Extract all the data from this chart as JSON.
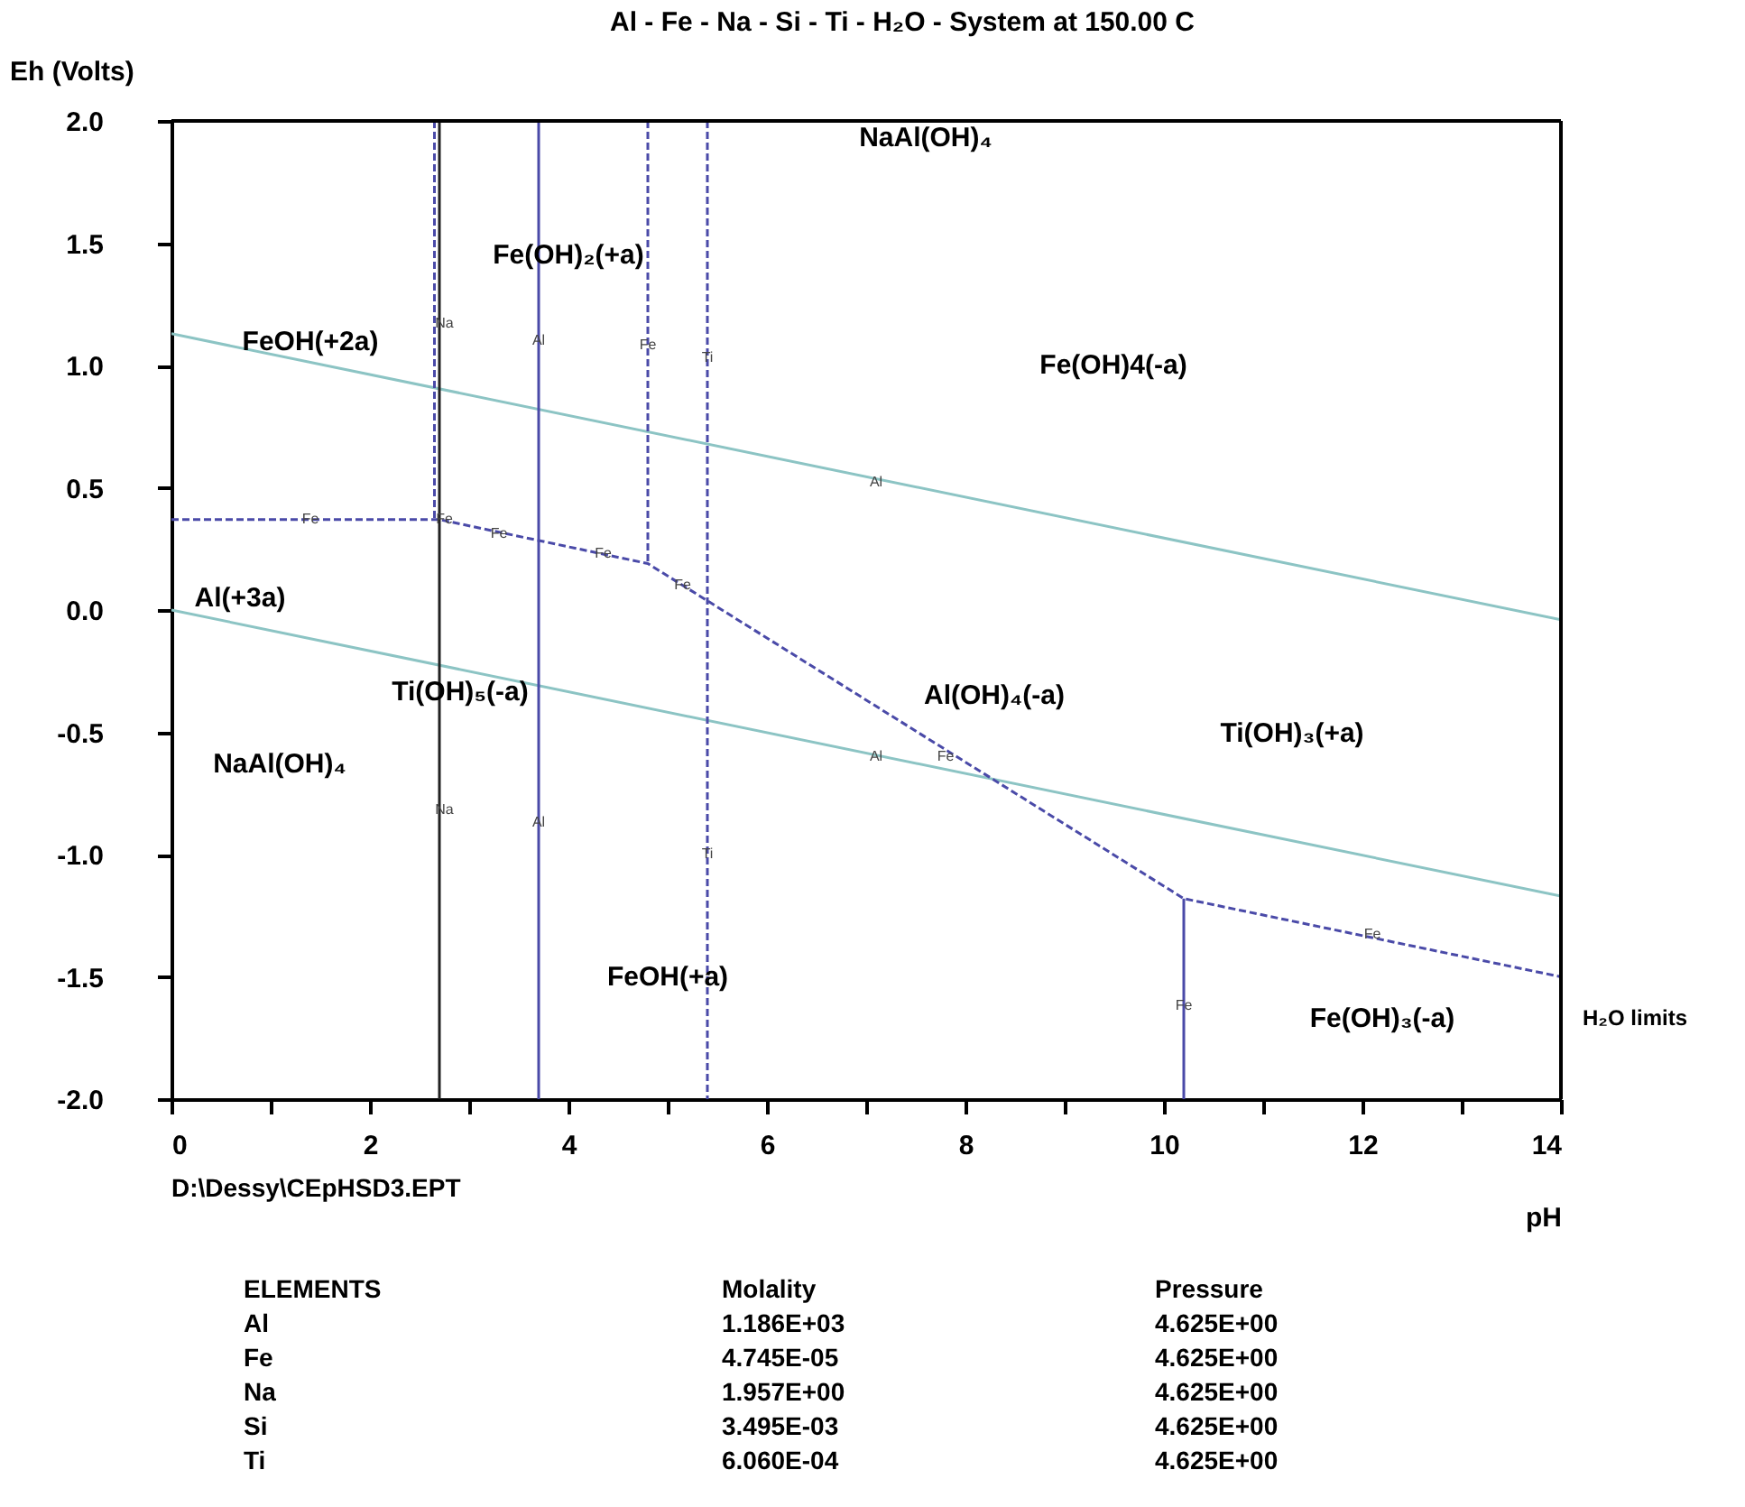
{
  "chart_data": {
    "type": "line",
    "title": "Al - Fe - Na - Si - Ti - H₂O - System at 150.00 C",
    "xlabel": "pH",
    "ylabel": "Eh (Volts)",
    "xlim": [
      0,
      14
    ],
    "ylim": [
      -2,
      2
    ],
    "xticks": [
      0,
      {
        "value": 1,
        "label": null
      },
      2,
      {
        "value": 3,
        "label": null
      },
      4,
      {
        "value": 5,
        "label": null
      },
      6,
      {
        "value": 7,
        "label": null
      },
      8,
      {
        "value": 9,
        "label": null
      },
      10,
      {
        "value": 11,
        "label": null
      },
      12,
      {
        "value": 13,
        "label": null
      },
      14
    ],
    "yticks": [
      {
        "value": -2,
        "label": "-2.0"
      },
      {
        "value": -1.5,
        "label": "-1.5"
      },
      {
        "value": -1,
        "label": "-1.0"
      },
      {
        "value": -0.5,
        "label": "-0.5"
      },
      {
        "value": 0,
        "label": "0.0"
      },
      {
        "value": 0.5,
        "label": "0.5"
      },
      {
        "value": 1,
        "label": "1.0"
      },
      {
        "value": 1.5,
        "label": "1.5"
      },
      {
        "value": 2,
        "label": "2.0"
      }
    ],
    "grid": false,
    "marker": "none",
    "series": [
      {
        "color": "#8cc4c4",
        "line_style": "solid",
        "x": [
          0,
          14
        ],
        "values": [
          1.13,
          -0.04
        ]
      },
      {
        "color": "#8cc4c4",
        "line_style": "solid",
        "x": [
          0,
          14
        ],
        "values": [
          0.0,
          -1.17
        ]
      },
      {
        "color": "#4a4aa8",
        "line_style": "dashed",
        "x": [
          0,
          2.7,
          4.8,
          10.2,
          14
        ],
        "values": [
          0.37,
          0.37,
          0.19,
          -1.18,
          -1.5
        ]
      },
      {
        "color": "#4a4aa8",
        "line_style": "dashed",
        "x": [
          2.65,
          2.65
        ],
        "values": [
          2.0,
          0.37
        ]
      },
      {
        "color": "#222222",
        "line_style": "solid",
        "x": [
          2.7,
          2.7
        ],
        "values": [
          2.0,
          -2.0
        ]
      },
      {
        "color": "#4a4aa8",
        "line_style": "solid",
        "x": [
          3.7,
          3.7
        ],
        "values": [
          2.0,
          -2.0
        ]
      },
      {
        "color": "#4a4aa8",
        "line_style": "dashed",
        "x": [
          4.8,
          4.8
        ],
        "values": [
          2.0,
          0.19
        ]
      },
      {
        "color": "#4a4aa8",
        "line_style": "dashed",
        "x": [
          5.4,
          5.4
        ],
        "values": [
          2.0,
          -2.0
        ]
      },
      {
        "color": "#4a4aa8",
        "line_style": "solid",
        "x": [
          10.2,
          10.2
        ],
        "values": [
          -1.18,
          -2.0
        ]
      }
    ],
    "annotations": [
      "NaAl(OH)₄",
      "Fe(OH)₂(+a)",
      "FeOH(+2a)",
      "Fe(OH)4(-a)",
      "Al(+3a)",
      "Ti(OH)₅(-a)",
      "Al(OH)₄(-a)",
      "Ti(OH)₃(+a)",
      "NaAl(OH)₄",
      "FeOH(+a)",
      "Fe(OH)₃(-a)",
      {
        "text": "Fe",
        "x": 1.4,
        "y": 0.37
      },
      {
        "text": "Fe",
        "x": 2.75,
        "y": 0.37
      },
      {
        "text": "Fe",
        "x": 3.3,
        "y": 0.31
      },
      {
        "text": "Fe",
        "x": 4.35,
        "y": 0.23
      },
      {
        "text": "Fe",
        "x": 5.15,
        "y": 0.1
      },
      {
        "text": "Fe",
        "x": 7.8,
        "y": -0.6
      },
      {
        "text": "Fe",
        "x": 12.1,
        "y": -1.33
      },
      {
        "text": "Fe",
        "x": 10.2,
        "y": -1.62
      },
      {
        "text": "Fe",
        "x": 4.8,
        "y": 1.08
      },
      {
        "text": "Al",
        "x": 3.7,
        "y": 1.1
      },
      {
        "text": "Al",
        "x": 7.1,
        "y": 0.52
      },
      {
        "text": "Al",
        "x": 7.1,
        "y": -0.6
      },
      {
        "text": "Al",
        "x": 3.7,
        "y": -0.87
      },
      {
        "text": "Ti",
        "x": 5.4,
        "y": 1.03
      },
      {
        "text": "Ti",
        "x": 5.4,
        "y": -1.0
      },
      {
        "text": "Na",
        "x": 2.75,
        "y": 1.17
      },
      {
        "text": "Na",
        "x": 2.75,
        "y": -0.82
      },
      "H₂O limits",
      "D:\\Dessy\\CEpHSD3.EPT",
      "ELEMENTS",
      "Molality",
      "Pressure",
      "Al",
      "1.186E+03",
      "4.625E+00",
      "Fe",
      "4.745E-05",
      "4.625E+00",
      "Na",
      "1.957E+00",
      "4.625E+00",
      "Si",
      "3.495E-03",
      "4.625E+00",
      "Ti",
      "6.060E-04",
      "4.625E+00"
    ]
  }
}
